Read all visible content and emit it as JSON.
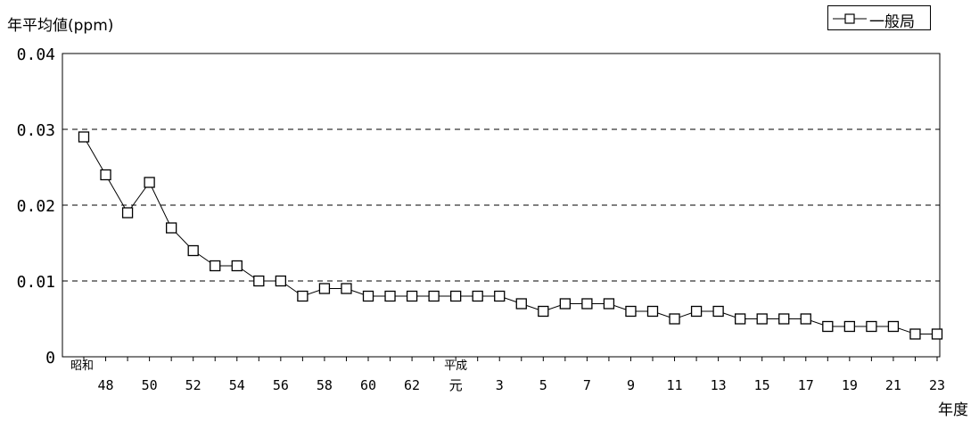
{
  "chart_data": {
    "type": "line",
    "ylabel": "年平均値(ppm)",
    "xlabel": "年度",
    "ylim": [
      0,
      0.04
    ],
    "yticks": [
      "0",
      "0.01",
      "0.02",
      "0.03",
      "0.04"
    ],
    "gridlines": "dashed horizontal",
    "legend_placement": "top-right",
    "x_tick_labels": [
      "48",
      "50",
      "52",
      "54",
      "56",
      "58",
      "60",
      "62",
      "元",
      "3",
      "5",
      "7",
      "9",
      "11",
      "13",
      "15",
      "17",
      "19",
      "21",
      "23"
    ],
    "era_labels": [
      "昭和",
      "平成"
    ],
    "x": [
      "47",
      "48",
      "49",
      "50",
      "51",
      "52",
      "53",
      "54",
      "55",
      "56",
      "57",
      "58",
      "59",
      "60",
      "61",
      "62",
      "63",
      "元",
      "2",
      "3",
      "4",
      "5",
      "6",
      "7",
      "8",
      "9",
      "10",
      "11",
      "12",
      "13",
      "14",
      "15",
      "16",
      "17",
      "18",
      "19",
      "20",
      "21",
      "22",
      "23"
    ],
    "series": [
      {
        "name": "一般局",
        "marker": "open-square",
        "color": "#000000",
        "values": [
          0.029,
          0.024,
          0.019,
          0.023,
          0.017,
          0.014,
          0.012,
          0.012,
          0.01,
          0.01,
          0.008,
          0.009,
          0.009,
          0.008,
          0.008,
          0.008,
          0.008,
          0.008,
          0.008,
          0.008,
          0.007,
          0.006,
          0.007,
          0.007,
          0.007,
          0.006,
          0.006,
          0.005,
          0.006,
          0.006,
          0.005,
          0.005,
          0.005,
          0.005,
          0.004,
          0.004,
          0.004,
          0.004,
          0.003,
          0.003
        ]
      }
    ]
  }
}
